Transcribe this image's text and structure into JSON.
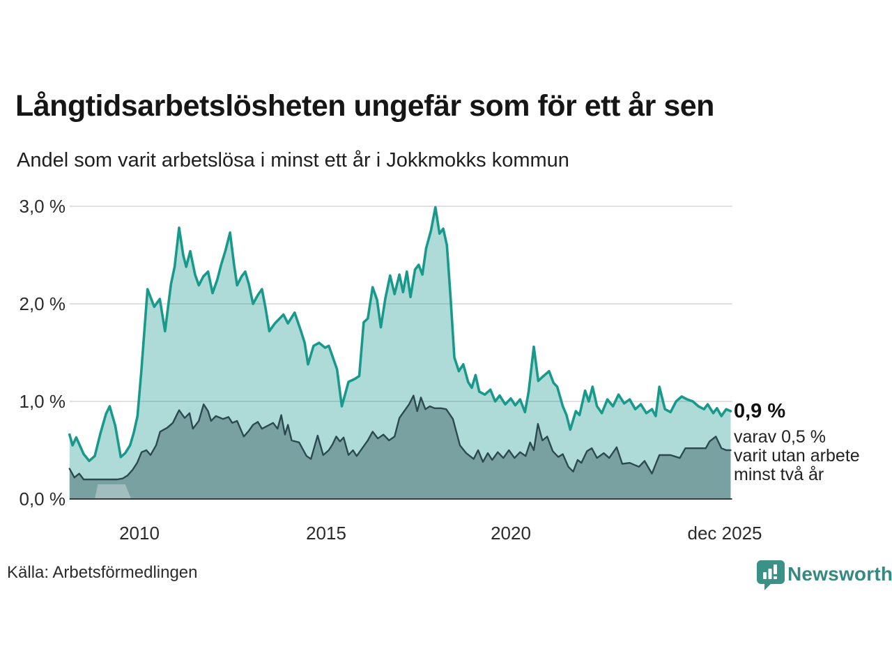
{
  "header": {
    "title": "Långtidsarbetslösheten ungefär som för ett år sen",
    "subtitle": "Andel som varit arbetslösa i minst ett år i Jokkmokks kommun"
  },
  "colors": {
    "teal_line": "#18998b",
    "teal_fill": "rgba(24,153,139,0.35)",
    "dark_line": "#2b4a50",
    "dark_fill": "rgba(43,74,80,0.40)",
    "gridline": "#e0dede",
    "axis_line": "#3a3a3a",
    "no_data_patch": "rgba(255,255,255,0.30)",
    "brand_teal": "#3a9188"
  },
  "chart_data": {
    "type": "area",
    "title": "Långtidsarbetslösheten ungefär som för ett år sen",
    "subtitle": "Andel som varit arbetslösa i minst ett år i Jokkmokks kommun",
    "xlabel": "",
    "ylabel": "",
    "x_range": [
      2008.12,
      2025.92
    ],
    "ylim": [
      0,
      3.1
    ],
    "yticks": [
      0,
      1,
      2,
      3
    ],
    "ytick_labels": [
      "0,0 %",
      "1,0 %",
      "2,0 %",
      "3,0 %"
    ],
    "xticks": [
      2010,
      2015,
      2020,
      2025.85
    ],
    "xtick_labels": [
      "2010",
      "2015",
      "2020",
      "dec 2025"
    ],
    "grid": "horizontal",
    "legend_position": "none",
    "series": [
      {
        "name": "Andel arbetslösa minst ett år",
        "points": [
          [
            2008.12,
            0.66
          ],
          [
            2008.2,
            0.55
          ],
          [
            2008.3,
            0.63
          ],
          [
            2008.5,
            0.46
          ],
          [
            2008.65,
            0.39
          ],
          [
            2008.8,
            0.44
          ],
          [
            2008.95,
            0.67
          ],
          [
            2009.1,
            0.87
          ],
          [
            2009.2,
            0.95
          ],
          [
            2009.35,
            0.75
          ],
          [
            2009.5,
            0.43
          ],
          [
            2009.62,
            0.47
          ],
          [
            2009.75,
            0.55
          ],
          [
            2009.85,
            0.68
          ],
          [
            2009.95,
            0.85
          ],
          [
            2010.05,
            1.3
          ],
          [
            2010.22,
            2.15
          ],
          [
            2010.4,
            1.97
          ],
          [
            2010.55,
            2.05
          ],
          [
            2010.69,
            1.72
          ],
          [
            2010.85,
            2.2
          ],
          [
            2010.95,
            2.38
          ],
          [
            2011.07,
            2.78
          ],
          [
            2011.18,
            2.5
          ],
          [
            2011.26,
            2.38
          ],
          [
            2011.37,
            2.54
          ],
          [
            2011.5,
            2.3
          ],
          [
            2011.6,
            2.19
          ],
          [
            2011.72,
            2.28
          ],
          [
            2011.85,
            2.33
          ],
          [
            2011.97,
            2.11
          ],
          [
            2012.1,
            2.25
          ],
          [
            2012.2,
            2.4
          ],
          [
            2012.32,
            2.55
          ],
          [
            2012.44,
            2.73
          ],
          [
            2012.55,
            2.4
          ],
          [
            2012.63,
            2.19
          ],
          [
            2012.75,
            2.28
          ],
          [
            2012.85,
            2.33
          ],
          [
            2012.95,
            2.2
          ],
          [
            2013.06,
            2.0
          ],
          [
            2013.19,
            2.09
          ],
          [
            2013.3,
            2.15
          ],
          [
            2013.4,
            1.95
          ],
          [
            2013.5,
            1.72
          ],
          [
            2013.65,
            1.8
          ],
          [
            2013.88,
            1.89
          ],
          [
            2014.0,
            1.8
          ],
          [
            2014.18,
            1.91
          ],
          [
            2014.35,
            1.72
          ],
          [
            2014.45,
            1.6
          ],
          [
            2014.54,
            1.38
          ],
          [
            2014.69,
            1.57
          ],
          [
            2014.84,
            1.6
          ],
          [
            2015.0,
            1.55
          ],
          [
            2015.1,
            1.57
          ],
          [
            2015.32,
            1.33
          ],
          [
            2015.45,
            0.95
          ],
          [
            2015.63,
            1.2
          ],
          [
            2015.8,
            1.23
          ],
          [
            2015.92,
            1.26
          ],
          [
            2016.04,
            1.81
          ],
          [
            2016.15,
            1.85
          ],
          [
            2016.28,
            2.17
          ],
          [
            2016.4,
            2.04
          ],
          [
            2016.5,
            1.76
          ],
          [
            2016.62,
            2.05
          ],
          [
            2016.75,
            2.29
          ],
          [
            2016.87,
            2.1
          ],
          [
            2017.0,
            2.3
          ],
          [
            2017.1,
            2.12
          ],
          [
            2017.2,
            2.33
          ],
          [
            2017.3,
            2.07
          ],
          [
            2017.42,
            2.35
          ],
          [
            2017.52,
            2.4
          ],
          [
            2017.62,
            2.3
          ],
          [
            2017.72,
            2.57
          ],
          [
            2017.85,
            2.75
          ],
          [
            2017.97,
            2.99
          ],
          [
            2018.08,
            2.72
          ],
          [
            2018.18,
            2.77
          ],
          [
            2018.28,
            2.6
          ],
          [
            2018.38,
            2.05
          ],
          [
            2018.48,
            1.45
          ],
          [
            2018.6,
            1.31
          ],
          [
            2018.72,
            1.38
          ],
          [
            2018.85,
            1.2
          ],
          [
            2018.95,
            1.14
          ],
          [
            2019.05,
            1.27
          ],
          [
            2019.15,
            1.1
          ],
          [
            2019.3,
            1.07
          ],
          [
            2019.45,
            1.12
          ],
          [
            2019.58,
            1.0
          ],
          [
            2019.7,
            1.06
          ],
          [
            2019.85,
            0.97
          ],
          [
            2020.0,
            1.03
          ],
          [
            2020.12,
            0.96
          ],
          [
            2020.25,
            1.02
          ],
          [
            2020.38,
            0.89
          ],
          [
            2020.48,
            1.1
          ],
          [
            2020.62,
            1.56
          ],
          [
            2020.74,
            1.21
          ],
          [
            2020.85,
            1.25
          ],
          [
            2021.03,
            1.31
          ],
          [
            2021.15,
            1.19
          ],
          [
            2021.25,
            1.15
          ],
          [
            2021.4,
            0.95
          ],
          [
            2021.5,
            0.86
          ],
          [
            2021.6,
            0.71
          ],
          [
            2021.75,
            0.9
          ],
          [
            2021.85,
            0.86
          ],
          [
            2022.0,
            1.11
          ],
          [
            2022.1,
            1.0
          ],
          [
            2022.2,
            1.15
          ],
          [
            2022.32,
            0.95
          ],
          [
            2022.45,
            0.88
          ],
          [
            2022.6,
            1.02
          ],
          [
            2022.75,
            0.95
          ],
          [
            2022.9,
            1.07
          ],
          [
            2023.05,
            0.98
          ],
          [
            2023.2,
            1.02
          ],
          [
            2023.35,
            0.92
          ],
          [
            2023.5,
            0.97
          ],
          [
            2023.65,
            0.88
          ],
          [
            2023.8,
            0.92
          ],
          [
            2023.9,
            0.85
          ],
          [
            2024.0,
            1.15
          ],
          [
            2024.15,
            0.92
          ],
          [
            2024.3,
            0.89
          ],
          [
            2024.45,
            1.0
          ],
          [
            2024.6,
            1.05
          ],
          [
            2024.75,
            1.02
          ],
          [
            2024.9,
            1.0
          ],
          [
            2025.05,
            0.95
          ],
          [
            2025.2,
            0.92
          ],
          [
            2025.3,
            0.97
          ],
          [
            2025.45,
            0.88
          ],
          [
            2025.55,
            0.93
          ],
          [
            2025.67,
            0.85
          ],
          [
            2025.8,
            0.92
          ],
          [
            2025.92,
            0.9
          ]
        ]
      },
      {
        "name": "varav utan arbete minst två år",
        "points": [
          [
            2008.12,
            0.31
          ],
          [
            2008.25,
            0.22
          ],
          [
            2008.38,
            0.26
          ],
          [
            2008.5,
            0.2
          ],
          [
            2008.8,
            0.2
          ],
          [
            2009.1,
            0.2
          ],
          [
            2009.4,
            0.2
          ],
          [
            2009.55,
            0.21
          ],
          [
            2009.68,
            0.24
          ],
          [
            2009.82,
            0.3
          ],
          [
            2009.94,
            0.37
          ],
          [
            2010.06,
            0.48
          ],
          [
            2010.19,
            0.5
          ],
          [
            2010.3,
            0.45
          ],
          [
            2010.45,
            0.55
          ],
          [
            2010.56,
            0.69
          ],
          [
            2010.75,
            0.73
          ],
          [
            2010.9,
            0.78
          ],
          [
            2011.07,
            0.91
          ],
          [
            2011.22,
            0.83
          ],
          [
            2011.35,
            0.88
          ],
          [
            2011.44,
            0.72
          ],
          [
            2011.6,
            0.8
          ],
          [
            2011.73,
            0.97
          ],
          [
            2011.85,
            0.9
          ],
          [
            2011.93,
            0.8
          ],
          [
            2012.06,
            0.85
          ],
          [
            2012.25,
            0.82
          ],
          [
            2012.4,
            0.84
          ],
          [
            2012.5,
            0.78
          ],
          [
            2012.63,
            0.8
          ],
          [
            2012.81,
            0.64
          ],
          [
            2012.95,
            0.7
          ],
          [
            2013.06,
            0.76
          ],
          [
            2013.19,
            0.79
          ],
          [
            2013.3,
            0.72
          ],
          [
            2013.45,
            0.75
          ],
          [
            2013.6,
            0.78
          ],
          [
            2013.72,
            0.72
          ],
          [
            2013.82,
            0.86
          ],
          [
            2013.92,
            0.66
          ],
          [
            2014.0,
            0.76
          ],
          [
            2014.1,
            0.6
          ],
          [
            2014.3,
            0.58
          ],
          [
            2014.5,
            0.44
          ],
          [
            2014.62,
            0.41
          ],
          [
            2014.8,
            0.65
          ],
          [
            2014.95,
            0.45
          ],
          [
            2015.1,
            0.5
          ],
          [
            2015.2,
            0.56
          ],
          [
            2015.3,
            0.64
          ],
          [
            2015.4,
            0.59
          ],
          [
            2015.5,
            0.63
          ],
          [
            2015.63,
            0.45
          ],
          [
            2015.75,
            0.5
          ],
          [
            2015.85,
            0.44
          ],
          [
            2016.0,
            0.52
          ],
          [
            2016.15,
            0.6
          ],
          [
            2016.28,
            0.69
          ],
          [
            2016.42,
            0.62
          ],
          [
            2016.57,
            0.66
          ],
          [
            2016.72,
            0.6
          ],
          [
            2016.87,
            0.64
          ],
          [
            2017.0,
            0.83
          ],
          [
            2017.13,
            0.9
          ],
          [
            2017.26,
            0.97
          ],
          [
            2017.38,
            1.06
          ],
          [
            2017.48,
            0.9
          ],
          [
            2017.58,
            1.04
          ],
          [
            2017.7,
            0.92
          ],
          [
            2017.82,
            0.95
          ],
          [
            2017.95,
            0.93
          ],
          [
            2018.12,
            0.93
          ],
          [
            2018.26,
            0.92
          ],
          [
            2018.44,
            0.82
          ],
          [
            2018.63,
            0.55
          ],
          [
            2018.8,
            0.47
          ],
          [
            2019.0,
            0.41
          ],
          [
            2019.12,
            0.5
          ],
          [
            2019.25,
            0.38
          ],
          [
            2019.38,
            0.47
          ],
          [
            2019.5,
            0.4
          ],
          [
            2019.65,
            0.48
          ],
          [
            2019.8,
            0.42
          ],
          [
            2019.95,
            0.5
          ],
          [
            2020.1,
            0.42
          ],
          [
            2020.25,
            0.48
          ],
          [
            2020.4,
            0.44
          ],
          [
            2020.52,
            0.58
          ],
          [
            2020.62,
            0.5
          ],
          [
            2020.73,
            0.77
          ],
          [
            2020.85,
            0.6
          ],
          [
            2020.98,
            0.64
          ],
          [
            2021.13,
            0.49
          ],
          [
            2021.28,
            0.43
          ],
          [
            2021.4,
            0.46
          ],
          [
            2021.55,
            0.33
          ],
          [
            2021.68,
            0.28
          ],
          [
            2021.8,
            0.4
          ],
          [
            2021.9,
            0.37
          ],
          [
            2022.05,
            0.49
          ],
          [
            2022.18,
            0.52
          ],
          [
            2022.32,
            0.42
          ],
          [
            2022.5,
            0.47
          ],
          [
            2022.65,
            0.42
          ],
          [
            2022.85,
            0.53
          ],
          [
            2023.0,
            0.36
          ],
          [
            2023.2,
            0.37
          ],
          [
            2023.45,
            0.33
          ],
          [
            2023.6,
            0.39
          ],
          [
            2023.8,
            0.26
          ],
          [
            2024.0,
            0.45
          ],
          [
            2024.3,
            0.45
          ],
          [
            2024.55,
            0.42
          ],
          [
            2024.7,
            0.52
          ],
          [
            2025.0,
            0.52
          ],
          [
            2025.25,
            0.52
          ],
          [
            2025.35,
            0.59
          ],
          [
            2025.52,
            0.64
          ],
          [
            2025.67,
            0.52
          ],
          [
            2025.8,
            0.5
          ],
          [
            2025.92,
            0.5
          ]
        ]
      }
    ],
    "no_data_patch": [
      [
        2008.8,
        0
      ],
      [
        2008.88,
        0.15
      ],
      [
        2009.62,
        0.15
      ],
      [
        2009.78,
        0
      ]
    ],
    "annotation": {
      "value_label": "0,9 %",
      "detail_lines": [
        "varav 0,5 %",
        "varit utan arbete",
        "minst två år"
      ]
    }
  },
  "footer": {
    "source": "Källa: Arbetsförmedlingen",
    "brand": "Newsworthy"
  }
}
